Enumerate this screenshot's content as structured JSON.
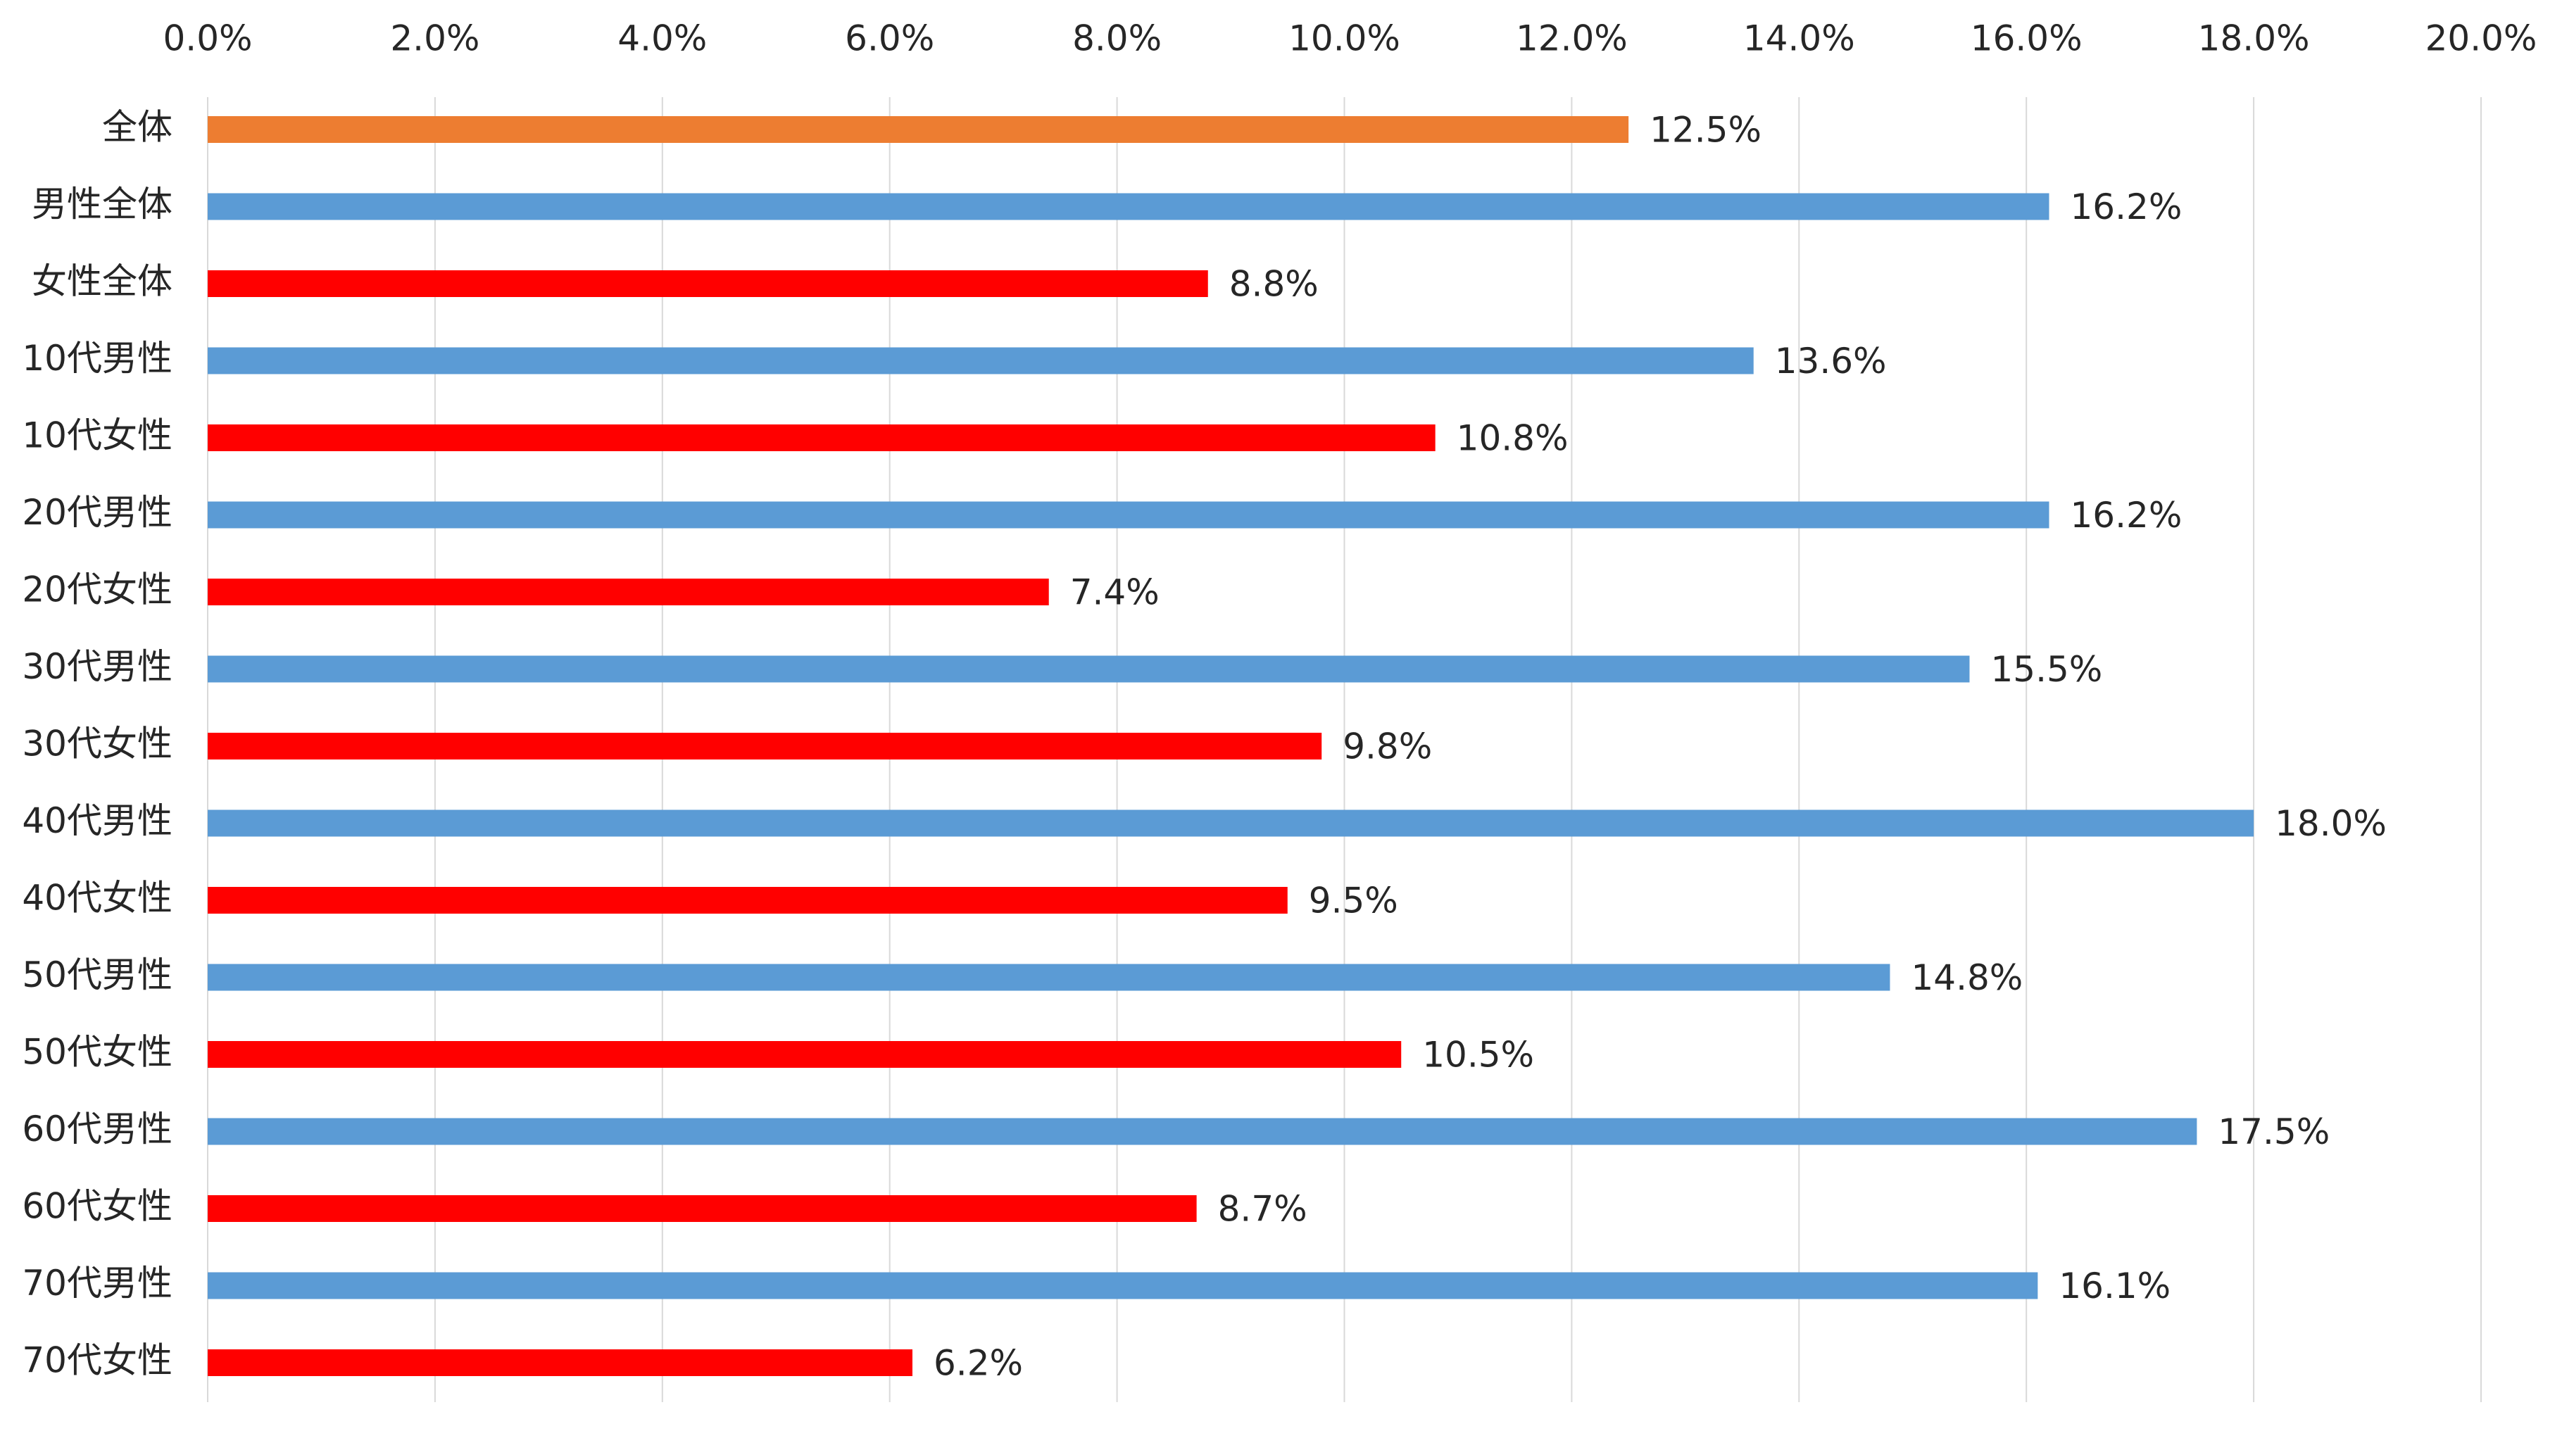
{
  "chart_data": {
    "type": "bar",
    "orientation": "horizontal",
    "xlim": [
      0,
      20
    ],
    "x_ticks": [
      "0.0%",
      "2.0%",
      "4.0%",
      "6.0%",
      "8.0%",
      "10.0%",
      "12.0%",
      "14.0%",
      "16.0%",
      "18.0%",
      "20.0%"
    ],
    "x_tick_values": [
      0,
      2,
      4,
      6,
      8,
      10,
      12,
      14,
      16,
      18,
      20
    ],
    "x_axis_position": "top",
    "grid": "vertical",
    "legend": "none",
    "categories": [
      "全体",
      "男性全体",
      "女性全体",
      "10代男性",
      "10代女性",
      "20代男性",
      "20代女性",
      "30代男性",
      "30代女性",
      "40代男性",
      "40代女性",
      "50代男性",
      "50代女性",
      "60代男性",
      "60代女性",
      "70代男性",
      "70代女性"
    ],
    "values": [
      12.5,
      16.2,
      8.8,
      13.6,
      10.8,
      16.2,
      7.4,
      15.5,
      9.8,
      18.0,
      9.5,
      14.8,
      10.5,
      17.5,
      8.7,
      16.1,
      6.2
    ],
    "value_labels": [
      "12.5%",
      "16.2%",
      "8.8%",
      "13.6%",
      "10.8%",
      "16.2%",
      "7.4%",
      "15.5%",
      "9.8%",
      "18.0%",
      "9.5%",
      "14.8%",
      "10.5%",
      "17.5%",
      "8.7%",
      "16.1%",
      "6.2%"
    ],
    "bar_colors": [
      "#ED7D31",
      "#5B9BD5",
      "#FF0000",
      "#5B9BD5",
      "#FF0000",
      "#5B9BD5",
      "#FF0000",
      "#5B9BD5",
      "#FF0000",
      "#5B9BD5",
      "#FF0000",
      "#5B9BD5",
      "#FF0000",
      "#5B9BD5",
      "#FF0000",
      "#5B9BD5",
      "#FF0000"
    ]
  },
  "colors": {
    "overall": "#ED7D31",
    "male": "#5B9BD5",
    "female": "#FF0000",
    "gridline": "#D9D9D9",
    "text": "#262626"
  }
}
